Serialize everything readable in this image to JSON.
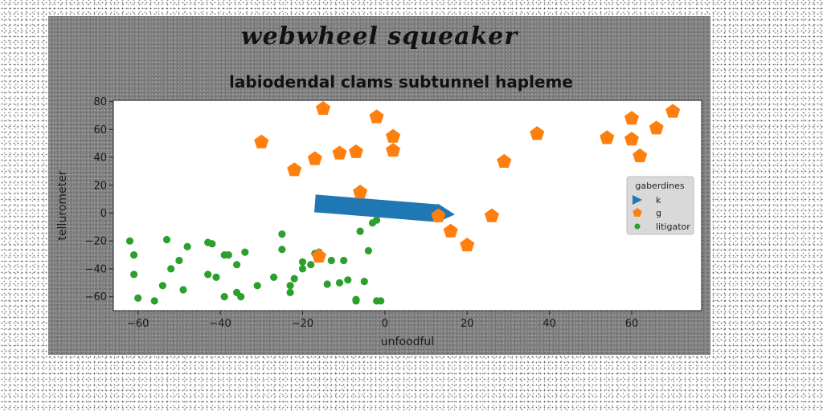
{
  "figure": {
    "title": "webwheel squeaker"
  },
  "chart_data": {
    "type": "scatter",
    "title": "labiodendal clams subtunnel hapleme",
    "xlabel": "unfoodful",
    "ylabel": "tellurometer",
    "xlim": [
      -66,
      77
    ],
    "ylim": [
      -70,
      81
    ],
    "xticks": [
      -60,
      -40,
      -20,
      0,
      20,
      40,
      60
    ],
    "yticks": [
      -60,
      -40,
      -20,
      0,
      20,
      40,
      60,
      80
    ],
    "grid": false,
    "legend": {
      "title": "gaberdines",
      "placement": "center-right"
    },
    "colors": {
      "k": "#1f77b4",
      "g": "#ff7f0e",
      "litigator": "#2ca02c",
      "plot_bg": "#ffffff",
      "figure_bg": "#7f7f7f"
    },
    "arrow": {
      "series": "k",
      "from": [
        -17,
        7
      ],
      "to": [
        17,
        -1
      ]
    },
    "series": [
      {
        "name": "k",
        "marker": "triangle",
        "points": []
      },
      {
        "name": "g",
        "marker": "pentagon",
        "points": [
          [
            -15,
            75
          ],
          [
            -2,
            69
          ],
          [
            -30,
            51
          ],
          [
            -17,
            39
          ],
          [
            -11,
            43
          ],
          [
            -7,
            44
          ],
          [
            -22,
            31
          ],
          [
            2,
            55
          ],
          [
            2,
            45
          ],
          [
            -6,
            15
          ],
          [
            13,
            -2
          ],
          [
            16,
            -13
          ],
          [
            20,
            -23
          ],
          [
            26,
            -2
          ],
          [
            29,
            37
          ],
          [
            37,
            57
          ],
          [
            54,
            54
          ],
          [
            60,
            68
          ],
          [
            60,
            53
          ],
          [
            62,
            41
          ],
          [
            66,
            61
          ],
          [
            70,
            73
          ],
          [
            -16,
            -31
          ]
        ]
      },
      {
        "name": "litigator",
        "marker": "circle",
        "points": [
          [
            -62,
            -20
          ],
          [
            -61,
            -30
          ],
          [
            -61,
            -44
          ],
          [
            -60,
            -61
          ],
          [
            -56,
            -63
          ],
          [
            -54,
            -52
          ],
          [
            -53,
            -19
          ],
          [
            -52,
            -40
          ],
          [
            -50,
            -34
          ],
          [
            -49,
            -55
          ],
          [
            -48,
            -24
          ],
          [
            -43,
            -21
          ],
          [
            -42,
            -22
          ],
          [
            -43,
            -44
          ],
          [
            -41,
            -46
          ],
          [
            -39,
            -30
          ],
          [
            -39,
            -60
          ],
          [
            -38,
            -30
          ],
          [
            -36,
            -37
          ],
          [
            -36,
            -57
          ],
          [
            -35,
            -60
          ],
          [
            -34,
            -28
          ],
          [
            -31,
            -52
          ],
          [
            -27,
            -46
          ],
          [
            -25,
            -15
          ],
          [
            -25,
            -26
          ],
          [
            -23,
            -52
          ],
          [
            -23,
            -57
          ],
          [
            -22,
            -47
          ],
          [
            -20,
            -40
          ],
          [
            -20,
            -35
          ],
          [
            -18,
            -37
          ],
          [
            -17,
            -29
          ],
          [
            -16,
            -28
          ],
          [
            -14,
            -51
          ],
          [
            -13,
            -34
          ],
          [
            -11,
            -50
          ],
          [
            -10,
            -34
          ],
          [
            -9,
            -48
          ],
          [
            -7,
            -62
          ],
          [
            -7,
            -63
          ],
          [
            -6,
            -13
          ],
          [
            -5,
            -49
          ],
          [
            -4,
            -27
          ],
          [
            -3,
            -7
          ],
          [
            -2,
            -5
          ],
          [
            -2,
            -63
          ],
          [
            -1,
            -63
          ]
        ]
      }
    ]
  }
}
